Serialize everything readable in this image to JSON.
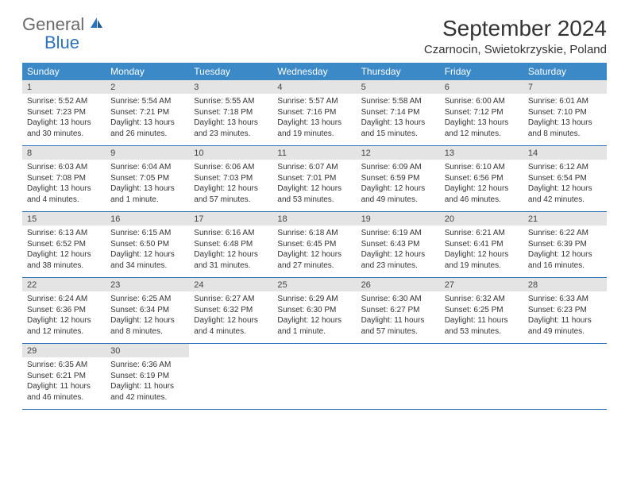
{
  "logo": {
    "text1": "General",
    "text2": "Blue",
    "color1": "#6a6a6a",
    "color2": "#2d73b9"
  },
  "title": "September 2024",
  "location": "Czarnocin, Swietokrzyskie, Poland",
  "colors": {
    "header_bg": "#3b89c7",
    "header_fg": "#ffffff",
    "daynum_bg": "#e4e4e4",
    "border": "#2d73b9",
    "text": "#333333"
  },
  "weekdays": [
    "Sunday",
    "Monday",
    "Tuesday",
    "Wednesday",
    "Thursday",
    "Friday",
    "Saturday"
  ],
  "weeks": [
    [
      {
        "n": "1",
        "sr": "5:52 AM",
        "ss": "7:23 PM",
        "dl": "13 hours and 30 minutes."
      },
      {
        "n": "2",
        "sr": "5:54 AM",
        "ss": "7:21 PM",
        "dl": "13 hours and 26 minutes."
      },
      {
        "n": "3",
        "sr": "5:55 AM",
        "ss": "7:18 PM",
        "dl": "13 hours and 23 minutes."
      },
      {
        "n": "4",
        "sr": "5:57 AM",
        "ss": "7:16 PM",
        "dl": "13 hours and 19 minutes."
      },
      {
        "n": "5",
        "sr": "5:58 AM",
        "ss": "7:14 PM",
        "dl": "13 hours and 15 minutes."
      },
      {
        "n": "6",
        "sr": "6:00 AM",
        "ss": "7:12 PM",
        "dl": "13 hours and 12 minutes."
      },
      {
        "n": "7",
        "sr": "6:01 AM",
        "ss": "7:10 PM",
        "dl": "13 hours and 8 minutes."
      }
    ],
    [
      {
        "n": "8",
        "sr": "6:03 AM",
        "ss": "7:08 PM",
        "dl": "13 hours and 4 minutes."
      },
      {
        "n": "9",
        "sr": "6:04 AM",
        "ss": "7:05 PM",
        "dl": "13 hours and 1 minute."
      },
      {
        "n": "10",
        "sr": "6:06 AM",
        "ss": "7:03 PM",
        "dl": "12 hours and 57 minutes."
      },
      {
        "n": "11",
        "sr": "6:07 AM",
        "ss": "7:01 PM",
        "dl": "12 hours and 53 minutes."
      },
      {
        "n": "12",
        "sr": "6:09 AM",
        "ss": "6:59 PM",
        "dl": "12 hours and 49 minutes."
      },
      {
        "n": "13",
        "sr": "6:10 AM",
        "ss": "6:56 PM",
        "dl": "12 hours and 46 minutes."
      },
      {
        "n": "14",
        "sr": "6:12 AM",
        "ss": "6:54 PM",
        "dl": "12 hours and 42 minutes."
      }
    ],
    [
      {
        "n": "15",
        "sr": "6:13 AM",
        "ss": "6:52 PM",
        "dl": "12 hours and 38 minutes."
      },
      {
        "n": "16",
        "sr": "6:15 AM",
        "ss": "6:50 PM",
        "dl": "12 hours and 34 minutes."
      },
      {
        "n": "17",
        "sr": "6:16 AM",
        "ss": "6:48 PM",
        "dl": "12 hours and 31 minutes."
      },
      {
        "n": "18",
        "sr": "6:18 AM",
        "ss": "6:45 PM",
        "dl": "12 hours and 27 minutes."
      },
      {
        "n": "19",
        "sr": "6:19 AM",
        "ss": "6:43 PM",
        "dl": "12 hours and 23 minutes."
      },
      {
        "n": "20",
        "sr": "6:21 AM",
        "ss": "6:41 PM",
        "dl": "12 hours and 19 minutes."
      },
      {
        "n": "21",
        "sr": "6:22 AM",
        "ss": "6:39 PM",
        "dl": "12 hours and 16 minutes."
      }
    ],
    [
      {
        "n": "22",
        "sr": "6:24 AM",
        "ss": "6:36 PM",
        "dl": "12 hours and 12 minutes."
      },
      {
        "n": "23",
        "sr": "6:25 AM",
        "ss": "6:34 PM",
        "dl": "12 hours and 8 minutes."
      },
      {
        "n": "24",
        "sr": "6:27 AM",
        "ss": "6:32 PM",
        "dl": "12 hours and 4 minutes."
      },
      {
        "n": "25",
        "sr": "6:29 AM",
        "ss": "6:30 PM",
        "dl": "12 hours and 1 minute."
      },
      {
        "n": "26",
        "sr": "6:30 AM",
        "ss": "6:27 PM",
        "dl": "11 hours and 57 minutes."
      },
      {
        "n": "27",
        "sr": "6:32 AM",
        "ss": "6:25 PM",
        "dl": "11 hours and 53 minutes."
      },
      {
        "n": "28",
        "sr": "6:33 AM",
        "ss": "6:23 PM",
        "dl": "11 hours and 49 minutes."
      }
    ],
    [
      {
        "n": "29",
        "sr": "6:35 AM",
        "ss": "6:21 PM",
        "dl": "11 hours and 46 minutes."
      },
      {
        "n": "30",
        "sr": "6:36 AM",
        "ss": "6:19 PM",
        "dl": "11 hours and 42 minutes."
      },
      null,
      null,
      null,
      null,
      null
    ]
  ],
  "labels": {
    "sunrise": "Sunrise:",
    "sunset": "Sunset:",
    "daylight": "Daylight:"
  }
}
